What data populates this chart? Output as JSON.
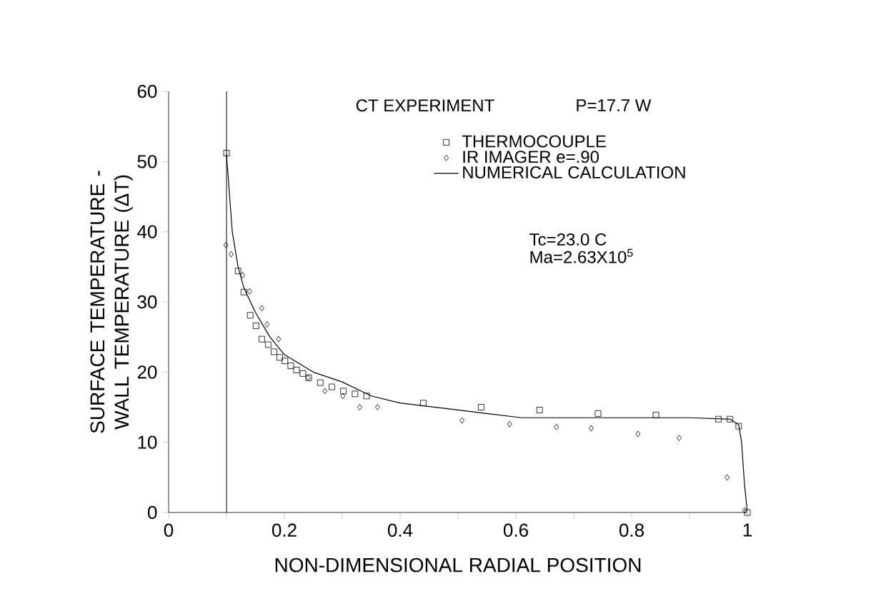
{
  "chart_data": {
    "type": "scatter",
    "xlabel": "NON-DIMENSIONAL RADIAL POSITION",
    "ylabel": "SURFACE TEMPERATURE - WALL TEMPERATURE (ΔT)",
    "xlim": [
      0,
      1
    ],
    "ylim": [
      0,
      60
    ],
    "xticks": [
      0,
      {
        "value": 0.1,
        "label": null
      },
      0.2,
      {
        "value": 0.3,
        "label": null
      },
      0.4,
      {
        "value": 0.5,
        "label": null
      },
      0.6,
      {
        "value": 0.7,
        "label": null
      },
      0.8,
      {
        "value": 0.9,
        "label": null
      },
      1
    ],
    "yticks": [
      0,
      10,
      20,
      30,
      40,
      50,
      60
    ],
    "legend": "top right",
    "annotations": [
      "CT EXPERIMENT",
      "P=17.7 W",
      "Tc=23.0  C",
      "Ma=2.63X10$^{5}$"
    ],
    "ref_lines": [
      {
        "axis": "x",
        "value": 0.1,
        "color": "#000000"
      }
    ],
    "series": [
      {
        "name": "THERMOCOUPLE",
        "marker": "square",
        "color": "#000000",
        "x": [
          0.1,
          0.12,
          0.13,
          0.141,
          0.151,
          0.161,
          0.172,
          0.182,
          0.192,
          0.201,
          0.211,
          0.221,
          0.232,
          0.242,
          0.262,
          0.282,
          0.302,
          0.322,
          0.342,
          0.44,
          0.54,
          0.641,
          0.742,
          0.842,
          0.95,
          0.97,
          0.985,
          1.0
        ],
        "values": [
          51.2,
          34.4,
          31.4,
          28.1,
          26.6,
          24.7,
          23.9,
          22.9,
          22.1,
          21.6,
          20.9,
          20.3,
          19.8,
          19.2,
          18.5,
          17.9,
          17.3,
          16.9,
          16.6,
          15.6,
          15.0,
          14.6,
          14.1,
          13.9,
          13.3,
          13.3,
          12.3,
          0
        ]
      },
      {
        "name": "IR IMAGER e=.90",
        "marker": "diamond",
        "color": "#000000",
        "x": [
          0.099,
          0.108,
          0.128,
          0.14,
          0.161,
          0.17,
          0.19,
          0.241,
          0.27,
          0.301,
          0.33,
          0.361,
          0.507,
          0.589,
          0.67,
          0.73,
          0.811,
          0.882,
          0.965,
          0.995
        ],
        "values": [
          38.1,
          36.8,
          33.8,
          31.5,
          29.1,
          26.8,
          24.7,
          19.2,
          17.3,
          16.6,
          15.0,
          15.0,
          13.1,
          12.6,
          12.2,
          12.0,
          11.2,
          10.6,
          5.0,
          0.3
        ]
      },
      {
        "name": "NUMERICAL CALCULATION",
        "type": "line",
        "marker": "none",
        "line_style": "solid",
        "color": "#000000",
        "x": [
          0.1,
          0.11,
          0.12,
          0.13,
          0.15,
          0.175,
          0.2,
          0.25,
          0.3,
          0.35,
          0.4,
          0.45,
          0.5,
          0.55,
          0.61,
          0.7,
          0.8,
          0.9,
          0.97,
          0.985,
          0.99,
          0.995,
          1.0
        ],
        "values": [
          51,
          40,
          35,
          32,
          28.5,
          25,
          22.5,
          20.0,
          18.6,
          16.6,
          15.6,
          15.1,
          14.6,
          14.1,
          13.5,
          13.5,
          13.5,
          13.5,
          13.3,
          12.5,
          10,
          4,
          0
        ]
      }
    ]
  }
}
